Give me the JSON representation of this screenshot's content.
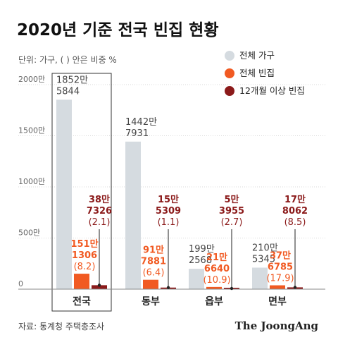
{
  "header": {
    "title": "2020년 기준 전국 빈집 현황",
    "unit_note": "단위: 가구, ( ) 안은 비중 %"
  },
  "colors": {
    "total": "#d5dbe0",
    "vacant": "#f15a22",
    "long_vacant": "#8b1a1a",
    "label_vacant": "#f15a22",
    "label_long": "#8b1a1a",
    "label_total": "#444444"
  },
  "footer": {
    "source": "자료: 통계청 주택총조사",
    "brand": "The JoongAng"
  },
  "chart_data": {
    "type": "bar",
    "ylim": [
      0,
      20000000
    ],
    "y_ticks": [
      {
        "value": 0,
        "label": "0"
      },
      {
        "value": 5000000,
        "label": "500만"
      },
      {
        "value": 10000000,
        "label": "1000만"
      },
      {
        "value": 15000000,
        "label": "1500만"
      },
      {
        "value": 20000000,
        "label": "2000만"
      }
    ],
    "categories": [
      "전국",
      "동부",
      "읍부",
      "면부"
    ],
    "highlighted_category": "전국",
    "grid": true,
    "legend_position": "top-right",
    "series": [
      {
        "name": "전체 가구",
        "key": "total",
        "values": [
          18525844,
          14427931,
          1992568,
          2105345
        ],
        "labels": [
          [
            "1852만",
            "5844"
          ],
          [
            "1442만",
            "7931"
          ],
          [
            "199만",
            "2568"
          ],
          [
            "210만",
            "5345"
          ]
        ]
      },
      {
        "name": "전체 빈집",
        "key": "vacant",
        "values": [
          1511306,
          917881,
          216640,
          376785
        ],
        "labels": [
          [
            "151만",
            "1306",
            "(8.2)"
          ],
          [
            "91만",
            "7881",
            "(6.4)"
          ],
          [
            "21만",
            "6640",
            "(10.9)"
          ],
          [
            "37만",
            "6785",
            "(17.9)"
          ]
        ]
      },
      {
        "name": "12개월 이상 빈집",
        "key": "long_vacant",
        "values": [
          387326,
          155309,
          53955,
          178062
        ],
        "labels": [
          [
            "38만",
            "7326",
            "(2.1)"
          ],
          [
            "15만",
            "5309",
            "(1.1)"
          ],
          [
            "5만",
            "3955",
            "(2.7)"
          ],
          [
            "17만",
            "8062",
            "(8.5)"
          ]
        ]
      }
    ]
  }
}
